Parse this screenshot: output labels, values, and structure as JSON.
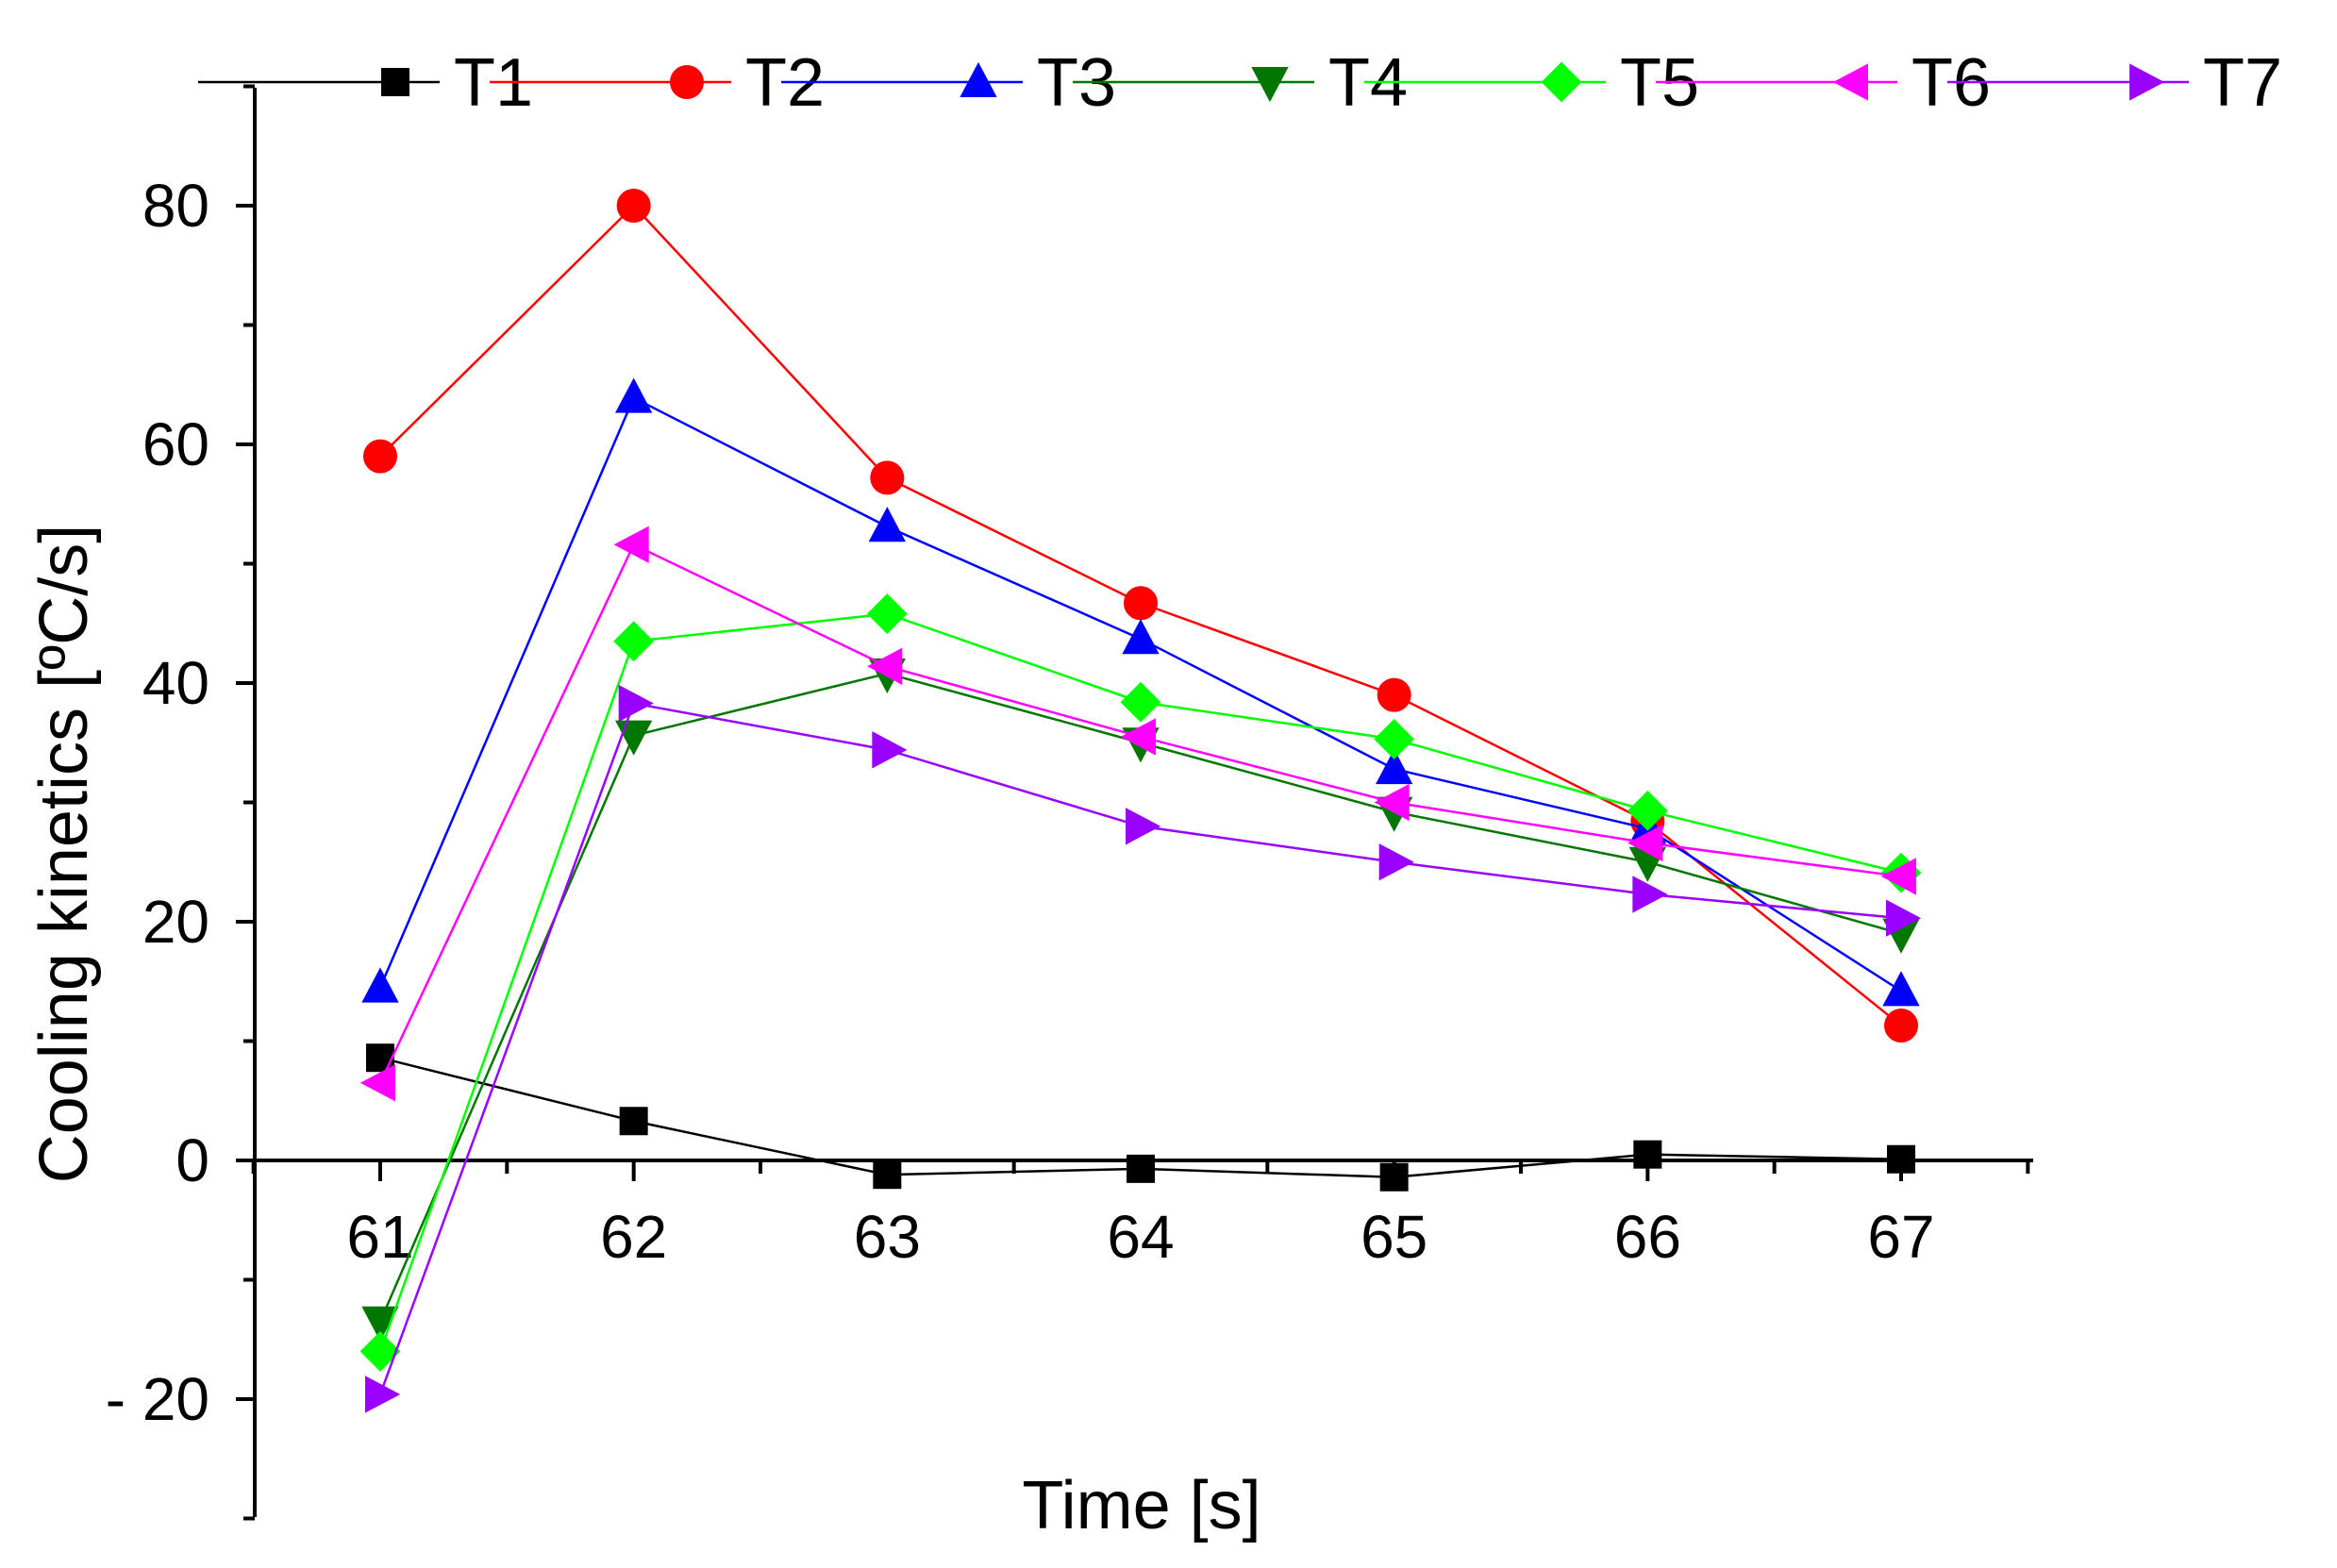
{
  "chart_data": {
    "type": "line",
    "title": "",
    "xlabel": "Time [s]",
    "ylabel": "Cooling kinetics [ºC/s]",
    "x": [
      61,
      62,
      63,
      64,
      65,
      66,
      67
    ],
    "xlim": [
      60.5,
      67.5
    ],
    "ylim": [
      -30,
      90
    ],
    "x_tick_labels": [
      "61",
      "62",
      "63",
      "64",
      "65",
      "66",
      "67"
    ],
    "y_ticks": [
      -20,
      0,
      20,
      40,
      60,
      80
    ],
    "y_tick_labels": [
      "- 20",
      "0",
      "20",
      "40",
      "60",
      "80"
    ],
    "zero_line": true,
    "grid": false,
    "legend_position": "top",
    "series": [
      {
        "name": "T1",
        "color": "#000000",
        "marker": "square",
        "values": [
          8.6,
          3.3,
          -1.2,
          -0.7,
          -1.4,
          0.5,
          0.1
        ]
      },
      {
        "name": "T2",
        "color": "#ff0000",
        "marker": "circle",
        "values": [
          59.0,
          80.0,
          57.2,
          46.7,
          39.0,
          28.4,
          11.3
        ]
      },
      {
        "name": "T3",
        "color": "#0000ff",
        "marker": "triangle-up",
        "values": [
          14.5,
          63.9,
          53.1,
          43.7,
          32.8,
          27.8,
          14.2
        ]
      },
      {
        "name": "T4",
        "color": "#007700",
        "marker": "triangle-down",
        "values": [
          -13.5,
          35.6,
          40.8,
          35.0,
          29.2,
          25.0,
          19.0
        ]
      },
      {
        "name": "T5",
        "color": "#00ff00",
        "marker": "diamond",
        "values": [
          -16.0,
          43.5,
          45.8,
          38.4,
          35.3,
          29.3,
          24.1
        ]
      },
      {
        "name": "T6",
        "color": "#ff00ff",
        "marker": "triangle-left",
        "values": [
          6.5,
          51.6,
          41.4,
          35.5,
          30.0,
          26.6,
          23.8
        ]
      },
      {
        "name": "T7",
        "color": "#9900ff",
        "marker": "triangle-right",
        "values": [
          -19.6,
          38.3,
          34.4,
          28.0,
          25.0,
          22.3,
          20.3
        ]
      }
    ]
  }
}
